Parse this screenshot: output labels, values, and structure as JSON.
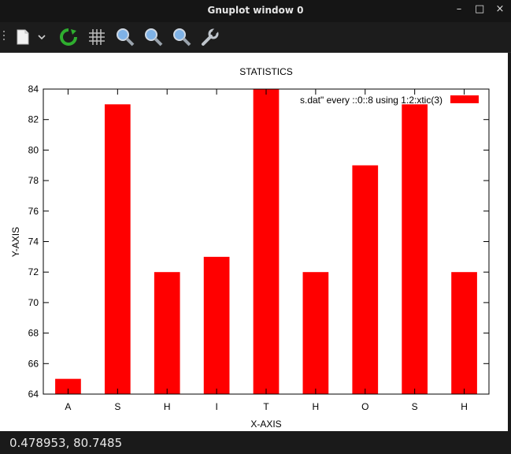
{
  "window": {
    "title": "Gnuplot window 0",
    "buttons": {
      "minimize": "–",
      "maximize": "□",
      "close": "×"
    }
  },
  "toolbar": {
    "items": [
      {
        "name": "copy-clipboard-icon"
      },
      {
        "name": "dropdown-icon"
      },
      {
        "name": "replot-icon"
      },
      {
        "name": "grid-icon"
      },
      {
        "name": "zoom-previous-icon"
      },
      {
        "name": "zoom-next-icon"
      },
      {
        "name": "autoscale-icon"
      },
      {
        "name": "options-wrench-icon"
      }
    ]
  },
  "status": {
    "coords": "0.478953,  80.7485"
  },
  "colors": {
    "bar": "#ff0000",
    "axis": "#000000"
  },
  "chart_data": {
    "type": "bar",
    "title": "STATISTICS",
    "xlabel": "X-AXIS",
    "ylabel": "Y-AXIS",
    "categories": [
      "A",
      "S",
      "H",
      "I",
      "T",
      "H",
      "O",
      "S",
      "H"
    ],
    "series": [
      {
        "name": "s.dat\" every ::0::8 using 1:2:xtic(3)",
        "values": [
          65,
          83,
          72,
          73,
          84,
          72,
          79,
          83,
          72
        ]
      }
    ],
    "ylim": [
      64,
      84
    ],
    "yticks": [
      "64",
      "66",
      "68",
      "70",
      "72",
      "74",
      "76",
      "78",
      "80",
      "82",
      "84"
    ],
    "legend_position": "top-right",
    "grid": false
  }
}
